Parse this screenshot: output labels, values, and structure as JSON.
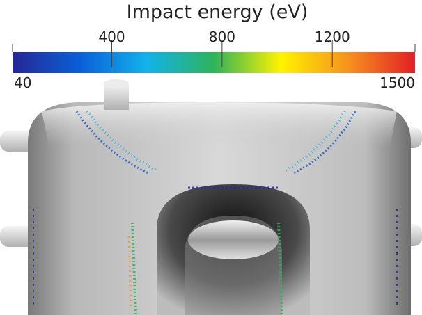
{
  "colorbar": {
    "title": "Impact energy (eV)",
    "min": 40,
    "max": 1500,
    "ticks": [
      400,
      800,
      1200
    ],
    "colormap": [
      "#262796",
      "#0b5fd8",
      "#12b2ea",
      "#2fb35a",
      "#fff200",
      "#f6921e",
      "#e21f26"
    ]
  }
}
